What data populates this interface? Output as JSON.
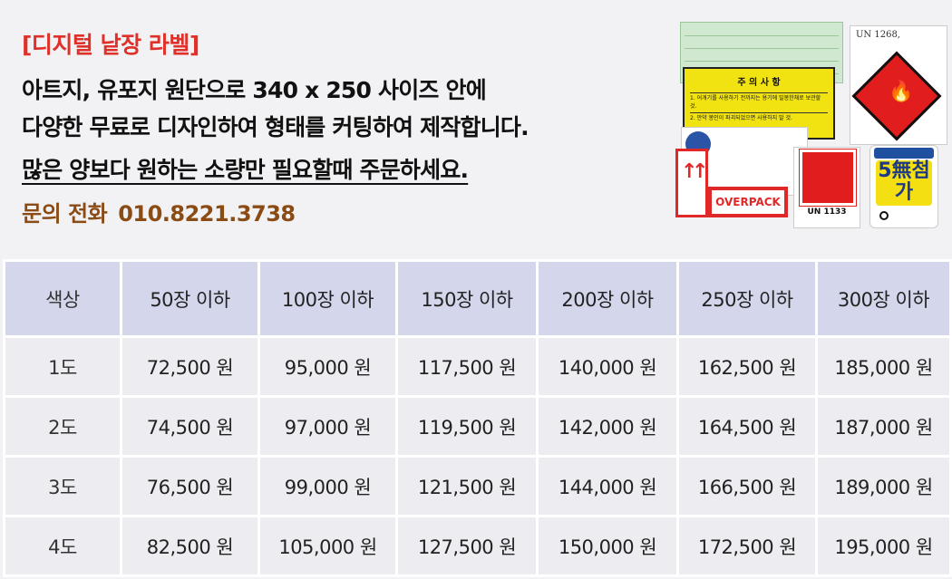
{
  "header": {
    "title": "[디지털 낱장 라벨]",
    "line1": "아트지, 유포지 원단으로 340 x 250 사이즈 안에",
    "line2": "다양한 무료로 디자인하여 형태를 커팅하여 제작합니다.",
    "line3": "많은 양보다 원하는 소량만 필요할때 주문하세요.",
    "phone_label": "문의 전화",
    "phone_number": "010.8221.3738"
  },
  "sample_labels": {
    "caution_title": "주 의 사 항",
    "caution_line1": "1. 어개기를 사용하기 전까지는 용기에 밀봉한채로 보관할 것.",
    "caution_line2": "2. 만약 봉인이 파괴되었으면 사용하지 말 것.",
    "un1268": "UN 1268,",
    "overpack": "OVERPACK",
    "un1133": "UN 1133",
    "five_free": "5無첨가"
  },
  "price_table": {
    "headers": [
      "색상",
      "50장 이하",
      "100장 이하",
      "150장 이하",
      "200장 이하",
      "250장 이하",
      "300장 이하"
    ],
    "rows": [
      [
        "1도",
        "72,500 원",
        "95,000 원",
        "117,500 원",
        "140,000 원",
        "162,500 원",
        "185,000 원"
      ],
      [
        "2도",
        "74,500 원",
        "97,000 원",
        "119,500 원",
        "142,000 원",
        "164,500 원",
        "187,000 원"
      ],
      [
        "3도",
        "76,500 원",
        "99,000 원",
        "121,500 원",
        "144,000 원",
        "166,500 원",
        "189,000 원"
      ],
      [
        "4도",
        "82,500 원",
        "105,000 원",
        "127,500 원",
        "150,000 원",
        "172,500 원",
        "195,000 원"
      ]
    ]
  },
  "colors": {
    "title_red": "#e0302a",
    "phone_brown": "#8a4b14",
    "header_cell": "#d4d6ec",
    "body_cell": "#ececf1"
  }
}
